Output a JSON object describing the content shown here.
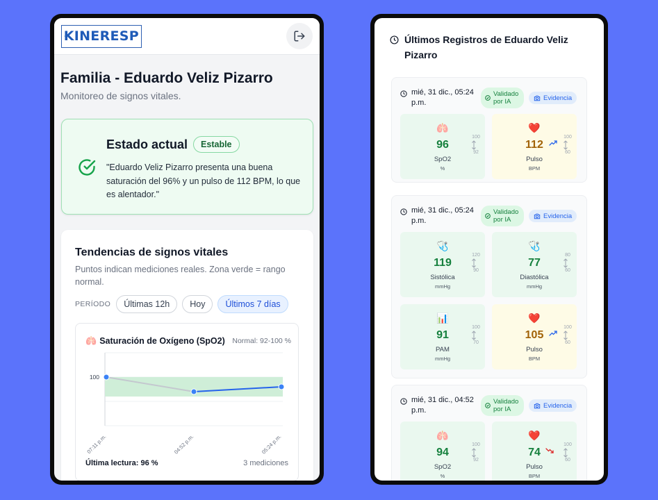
{
  "left": {
    "logo_text": "KINERESP",
    "title": "Familia - Eduardo Veliz Pizarro",
    "subtitle": "Monitoreo de signos vitales.",
    "status": {
      "title": "Estado actual",
      "badge": "Estable",
      "text": "\"Eduardo Veliz Pizarro presenta una buena saturación del 96% y un pulso de 112 BPM, lo que es alentador.\"",
      "color": "#16a34a"
    },
    "trends": {
      "title": "Tendencias de signos vitales",
      "subtitle": "Puntos indican mediciones reales. Zona verde = rango normal.",
      "period_label": "PERÍODO",
      "periods": [
        "Últimas 12h",
        "Hoy",
        "Últimos 7 días"
      ],
      "active_period": "Últimos 7 días",
      "chart_title": "Saturación de Oxígeno (SpO2)",
      "chart_icon": "lungs-icon",
      "normal_range": "Normal: 92-100 %",
      "last_reading": "Última lectura: 96 %",
      "count": "3 mediciones"
    }
  },
  "chart_data": {
    "type": "line",
    "title": "Saturación de Oxígeno (SpO2)",
    "x": [
      "07:11 p.m.",
      "04:52 p.m.",
      "05:24 p.m."
    ],
    "series": [
      {
        "values": [
          100,
          94,
          96
        ]
      }
    ],
    "y_tick_labels": [
      "100"
    ],
    "ylim": [
      80,
      110
    ],
    "normal_band": [
      92,
      100
    ],
    "grid": true,
    "colors": {
      "line": "#2563eb",
      "past_line": "#c4c8cf",
      "band": "#cfeed8",
      "point": "#3b82f6"
    }
  },
  "right": {
    "title": "Últimos Registros de Eduardo Veliz Pizarro",
    "records": [
      {
        "date": "mié, 31 dic., 05:24 p.m.",
        "validated": "Validado por IA",
        "evidence": "Evidencia",
        "tiles": [
          {
            "icon": "lungs-icon",
            "glyph": "🫁",
            "value": "96",
            "label": "SpO2",
            "unit": "%",
            "max": "100",
            "min": "92",
            "warn": false,
            "trend": ""
          },
          {
            "icon": "heart-icon",
            "glyph": "❤️",
            "value": "112",
            "label": "Pulso",
            "unit": "BPM",
            "max": "100",
            "min": "60",
            "warn": true,
            "trend": "up"
          }
        ]
      },
      {
        "date": "mié, 31 dic., 05:24 p.m.",
        "validated": "Validado por IA",
        "evidence": "Evidencia",
        "tiles": [
          {
            "icon": "stethoscope-icon",
            "glyph": "🩺",
            "value": "119",
            "label": "Sistólica",
            "unit": "mmHg",
            "max": "120",
            "min": "90",
            "warn": false,
            "trend": ""
          },
          {
            "icon": "stethoscope-icon",
            "glyph": "🩺",
            "value": "77",
            "label": "Diastólica",
            "unit": "mmHg",
            "max": "80",
            "min": "60",
            "warn": false,
            "trend": ""
          },
          {
            "icon": "bar-chart-icon",
            "glyph": "📊",
            "value": "91",
            "label": "PAM",
            "unit": "mmHg",
            "max": "100",
            "min": "70",
            "warn": false,
            "trend": ""
          },
          {
            "icon": "heart-icon",
            "glyph": "❤️",
            "value": "105",
            "label": "Pulso",
            "unit": "BPM",
            "max": "100",
            "min": "60",
            "warn": true,
            "trend": "up"
          }
        ]
      },
      {
        "date": "mié, 31 dic., 04:52 p.m.",
        "validated": "Validado por IA",
        "evidence": "Evidencia",
        "tiles": [
          {
            "icon": "lungs-icon",
            "glyph": "🫁",
            "value": "94",
            "label": "SpO2",
            "unit": "%",
            "max": "100",
            "min": "92",
            "warn": false,
            "trend": ""
          },
          {
            "icon": "heart-icon",
            "glyph": "❤️",
            "value": "74",
            "label": "Pulso",
            "unit": "BPM",
            "max": "100",
            "min": "60",
            "warn": false,
            "trend": "down"
          }
        ]
      }
    ]
  }
}
